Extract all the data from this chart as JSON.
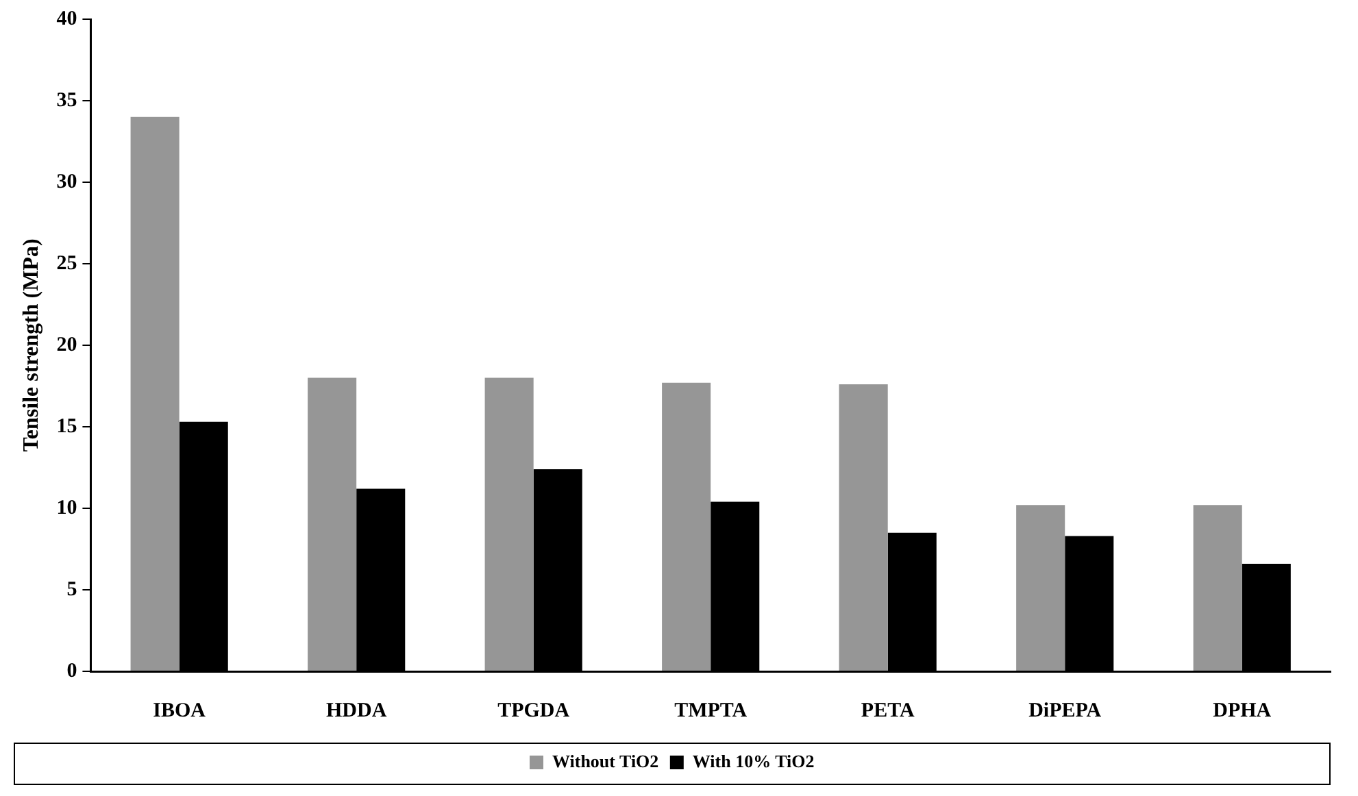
{
  "chart_data": {
    "type": "bar",
    "ylabel": "Tensile strength (MPa)",
    "categories": [
      "IBOA",
      "HDDA",
      "TPGDA",
      "TMPTA",
      "PETA",
      "DiPEPA",
      "DPHA"
    ],
    "series": [
      {
        "name": "Without TiO2",
        "color": "#969696",
        "values": [
          34,
          18,
          18,
          17.7,
          17.6,
          10.2,
          10.2
        ]
      },
      {
        "name": "With 10% TiO2",
        "color": "#000000",
        "values": [
          15.3,
          11.2,
          12.4,
          10.4,
          8.5,
          8.3,
          6.6
        ]
      }
    ],
    "ylim": [
      0,
      40
    ],
    "yticks": [
      0,
      5,
      10,
      15,
      20,
      25,
      30,
      35,
      40
    ],
    "grid": false,
    "legend": "bottom"
  }
}
